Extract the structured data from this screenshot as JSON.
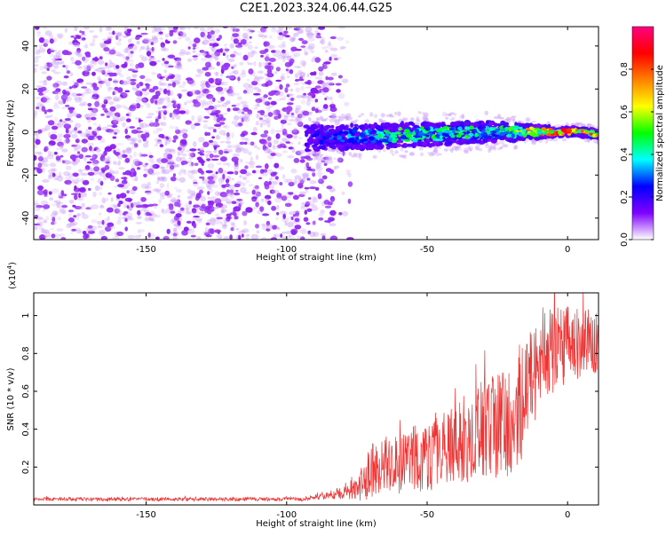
{
  "chart_data": [
    {
      "type": "heatmap",
      "title": "C2E1.2023.324.06.44.G25",
      "xlabel": "Height of straight line (km)",
      "ylabel": "Frequency (Hz)",
      "xlim": [
        -190,
        11
      ],
      "ylim": [
        -50,
        49
      ],
      "xticks": [
        -150,
        -100,
        -50,
        0
      ],
      "yticks": [
        -40,
        -20,
        0,
        20,
        40
      ],
      "colorbar": {
        "label": "Normalized spectral amplitude",
        "range": [
          0,
          1
        ],
        "ticks": [
          0.0,
          0.2,
          0.4,
          0.6,
          0.8
        ],
        "tick_labels": [
          "0.0",
          "0.2",
          "0.4",
          "0.6",
          "0.8"
        ],
        "colors": [
          "#ffffff",
          "#8000ff",
          "#0000ff",
          "#00ffff",
          "#00ff00",
          "#ffff00",
          "#ff8000",
          "#ff0000",
          "#ff0080"
        ]
      },
      "noise_region": {
        "x_range": [
          -190,
          -85
        ],
        "y_range": [
          -50,
          49
        ],
        "amplitude": 0.15
      },
      "signal_band": [
        {
          "x": -93,
          "freq": -3.0,
          "halfwidth": 4.0,
          "amplitude": 0.2
        },
        {
          "x": -80,
          "freq": -2.5,
          "halfwidth": 4.0,
          "amplitude": 0.3
        },
        {
          "x": -70,
          "freq": -2.0,
          "halfwidth": 4.0,
          "amplitude": 0.4
        },
        {
          "x": -60,
          "freq": -1.5,
          "halfwidth": 4.0,
          "amplitude": 0.45
        },
        {
          "x": -50,
          "freq": -1.0,
          "halfwidth": 4.0,
          "amplitude": 0.45
        },
        {
          "x": -40,
          "freq": -0.5,
          "halfwidth": 3.5,
          "amplitude": 0.45
        },
        {
          "x": -30,
          "freq": 0.0,
          "halfwidth": 3.5,
          "amplitude": 0.4
        },
        {
          "x": -20,
          "freq": 0.0,
          "halfwidth": 3.0,
          "amplitude": 0.45
        },
        {
          "x": -10,
          "freq": 0.0,
          "halfwidth": 2.0,
          "amplitude": 0.75
        },
        {
          "x": 0,
          "freq": 0.0,
          "halfwidth": 1.5,
          "amplitude": 0.8
        },
        {
          "x": 5,
          "freq": 0.0,
          "halfwidth": 1.5,
          "amplitude": 0.9
        },
        {
          "x": 10,
          "freq": -1.0,
          "halfwidth": 1.5,
          "amplitude": 0.7
        }
      ]
    },
    {
      "type": "line",
      "xlabel": "Height of straight line (km)",
      "ylabel": "SNR (10 * v/v)",
      "y_multiplier": "(x10",
      "y_multiplier_exp": "4",
      "y_multiplier_close": ")",
      "xlim": [
        -190,
        11
      ],
      "ylim": [
        0,
        1.12
      ],
      "xticks": [
        -150,
        -100,
        -50,
        0
      ],
      "yticks": [
        0.2,
        0.4,
        0.6,
        0.8,
        1.0
      ],
      "color": "#ee3333",
      "series": [
        {
          "x": [
            -190,
            -180,
            -170,
            -160,
            -150,
            -140,
            -130,
            -120,
            -110,
            -100,
            -95,
            -90,
            -85,
            -80,
            -75,
            -72,
            -70,
            -65,
            -60,
            -55,
            -50,
            -45,
            -40,
            -35,
            -30,
            -25,
            -20,
            -17,
            -15,
            -12,
            -10,
            -8,
            -5,
            -2,
            0,
            3,
            5,
            8,
            10,
            11
          ],
          "y": [
            0.03,
            0.03,
            0.03,
            0.03,
            0.03,
            0.03,
            0.03,
            0.03,
            0.03,
            0.03,
            0.03,
            0.04,
            0.05,
            0.07,
            0.09,
            0.13,
            0.18,
            0.22,
            0.22,
            0.24,
            0.25,
            0.28,
            0.32,
            0.36,
            0.4,
            0.42,
            0.45,
            0.5,
            0.6,
            0.7,
            0.8,
            0.8,
            0.82,
            0.84,
            0.85,
            0.85,
            0.86,
            0.86,
            0.85,
            0.85
          ],
          "spread": [
            0.01,
            0.01,
            0.01,
            0.01,
            0.01,
            0.01,
            0.01,
            0.01,
            0.01,
            0.01,
            0.01,
            0.015,
            0.02,
            0.04,
            0.06,
            0.12,
            0.15,
            0.15,
            0.16,
            0.18,
            0.18,
            0.2,
            0.22,
            0.24,
            0.26,
            0.28,
            0.3,
            0.3,
            0.3,
            0.28,
            0.26,
            0.24,
            0.24,
            0.22,
            0.2,
            0.2,
            0.18,
            0.18,
            0.17,
            0.17
          ]
        }
      ]
    }
  ]
}
